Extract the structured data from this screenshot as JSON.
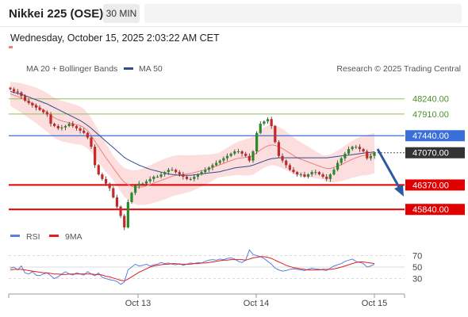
{
  "header": {
    "title": "Nikkei 225 (OSE)",
    "timeframe": "30 MIN",
    "datetime": "Wednesday, October 15, 2025 2:03:22 AM CET"
  },
  "legend": {
    "ma20_label": "MA 20 + Bollinger Bands",
    "ma50_label": "MA 50",
    "rsi_label": "RSI",
    "rsi_ma_label": "9MA",
    "credit": "Research © 2025 Trading Central"
  },
  "colors": {
    "ma20": "#f08080",
    "ma50": "#2c4e8c",
    "band_fill": "#fbd3d3",
    "up_candle": "#2a8a2a",
    "down_candle": "#c62828",
    "support": "#e00000",
    "resistance_green": "#8fbf5a",
    "pivot_blue": "#3a6fd8",
    "last_price_bg": "#333333",
    "arrow": "#2c5aa0",
    "rsi": "#5b7fdc",
    "rsi_ma": "#e02020"
  },
  "chart_data": {
    "type": "candlestick",
    "title": "Nikkei 225 (OSE)",
    "timeframe": "30 MIN",
    "x_labels": [
      "Oct 13",
      "Oct 14",
      "Oct 15"
    ],
    "ylim": [
      45500,
      48700
    ],
    "last_price": 47070,
    "levels": [
      {
        "value": 48240,
        "label": "48240.00",
        "kind": "resistance"
      },
      {
        "value": 47910,
        "label": "47910.00",
        "kind": "resistance"
      },
      {
        "value": 47440,
        "label": "47440.00",
        "kind": "pivot"
      },
      {
        "value": 47070,
        "label": "47070.00",
        "kind": "last"
      },
      {
        "value": 46370,
        "label": "46370.00",
        "kind": "support"
      },
      {
        "value": 45840,
        "label": "45840.00",
        "kind": "support"
      }
    ],
    "close": [
      48450,
      48400,
      48380,
      48300,
      48200,
      48150,
      48100,
      48050,
      48000,
      47950,
      47900,
      47700,
      47650,
      47600,
      47620,
      47650,
      47700,
      47650,
      47600,
      47550,
      47500,
      47400,
      47200,
      46800,
      46600,
      46500,
      46400,
      46300,
      46100,
      45900,
      45700,
      45450,
      46000,
      46200,
      46350,
      46400,
      46400,
      46450,
      46500,
      46550,
      46550,
      46600,
      46650,
      46700,
      46700,
      46650,
      46600,
      46550,
      46500,
      46500,
      46550,
      46600,
      46650,
      46700,
      46750,
      46800,
      46850,
      46900,
      46950,
      47000,
      47050,
      47100,
      47100,
      47050,
      47000,
      46900,
      47100,
      47500,
      47700,
      47750,
      47800,
      47650,
      47300,
      47000,
      46900,
      46800,
      46700,
      46650,
      46600,
      46600,
      46550,
      46600,
      46650,
      46650,
      46600,
      46550,
      46500,
      46600,
      46700,
      46850,
      46950,
      47050,
      47150,
      47200,
      47200,
      47150,
      47100,
      46950,
      47000,
      47070
    ],
    "ma20": [
      48350,
      48320,
      48290,
      48260,
      48220,
      48180,
      48140,
      48100,
      48050,
      48000,
      47950,
      47880,
      47830,
      47790,
      47760,
      47740,
      47720,
      47700,
      47680,
      47660,
      47620,
      47550,
      47450,
      47320,
      47200,
      47080,
      46960,
      46850,
      46740,
      46630,
      46520,
      46430,
      46380,
      46340,
      46320,
      46320,
      46330,
      46350,
      46380,
      46410,
      46440,
      46470,
      46500,
      46530,
      46560,
      46580,
      46590,
      46600,
      46610,
      46620,
      46640,
      46660,
      46680,
      46700,
      46720,
      46750,
      46780,
      46810,
      46840,
      46870,
      46900,
      46930,
      46950,
      46960,
      46970,
      46980,
      47010,
      47070,
      47130,
      47180,
      47220,
      47240,
      47230,
      47200,
      47160,
      47110,
      47060,
      47010,
      46960,
      46930,
      46900,
      46870,
      46840,
      46810,
      46780,
      46750,
      46730,
      46730,
      46750,
      46780,
      46810,
      46850,
      46890,
      46930,
      46960,
      46990,
      47010,
      47020,
      47040,
      47070
    ],
    "ma50": [
      48400,
      48380,
      48360,
      48340,
      48310,
      48280,
      48250,
      48220,
      48190,
      48160,
      48130,
      48090,
      48050,
      48010,
      47970,
      47930,
      47890,
      47850,
      47810,
      47770,
      47720,
      47660,
      47600,
      47530,
      47460,
      47390,
      47320,
      47250,
      47180,
      47110,
      47040,
      46970,
      46920,
      46880,
      46840,
      46800,
      46770,
      46740,
      46710,
      46690,
      46670,
      46650,
      46630,
      46610,
      46600,
      46590,
      46580,
      46580,
      46580,
      46580,
      46590,
      46600,
      46610,
      46620,
      46630,
      46640,
      46650,
      46660,
      46680,
      46700,
      46720,
      46740,
      46750,
      46760,
      46770,
      46780,
      46800,
      46830,
      46860,
      46890,
      46920,
      46940,
      46950,
      46960,
      46960,
      46960,
      46960,
      46960,
      46960,
      46960,
      46960,
      46960,
      46960,
      46960,
      46960,
      46960,
      46960,
      46970,
      46980,
      46990,
      47000,
      47010,
      47020,
      47030,
      47040,
      47050,
      47060,
      47070,
      47080,
      47090
    ],
    "rsi": {
      "ylim": [
        10,
        90
      ],
      "ticks": [
        70,
        50,
        30
      ],
      "rsi": [
        48,
        50,
        45,
        52,
        40,
        38,
        42,
        36,
        35,
        38,
        40,
        35,
        30,
        33,
        38,
        42,
        38,
        36,
        40,
        38,
        36,
        42,
        38,
        35,
        40,
        32,
        30,
        28,
        27,
        25,
        20,
        24,
        45,
        50,
        55,
        52,
        53,
        55,
        52,
        54,
        55,
        58,
        56,
        57,
        55,
        54,
        56,
        53,
        55,
        57,
        56,
        58,
        57,
        60,
        62,
        63,
        62,
        64,
        63,
        65,
        66,
        64,
        60,
        58,
        62,
        80,
        72,
        70,
        68,
        65,
        60,
        55,
        48,
        45,
        43,
        44,
        46,
        47,
        46,
        45,
        44,
        46,
        48,
        47,
        46,
        45,
        44,
        48,
        52,
        54,
        56,
        60,
        62,
        64,
        60,
        58,
        56,
        50,
        52,
        55
      ],
      "ma": [
        45,
        46,
        46,
        46,
        45,
        44,
        43,
        42,
        41,
        40,
        40,
        39,
        38,
        38,
        37,
        37,
        38,
        38,
        38,
        38,
        38,
        38,
        38,
        37,
        37,
        36,
        34,
        33,
        31,
        29,
        27,
        26,
        29,
        33,
        37,
        41,
        44,
        47,
        50,
        52,
        53,
        54,
        55,
        55,
        56,
        56,
        55,
        55,
        55,
        55,
        56,
        56,
        57,
        57,
        58,
        59,
        60,
        61,
        62,
        62,
        63,
        63,
        63,
        63,
        62,
        64,
        66,
        67,
        68,
        68,
        67,
        65,
        62,
        59,
        56,
        53,
        51,
        49,
        48,
        47,
        46,
        45,
        45,
        45,
        45,
        46,
        46,
        46,
        47,
        48,
        50,
        52,
        54,
        56,
        58,
        59,
        59,
        58,
        57,
        56
      ]
    }
  }
}
